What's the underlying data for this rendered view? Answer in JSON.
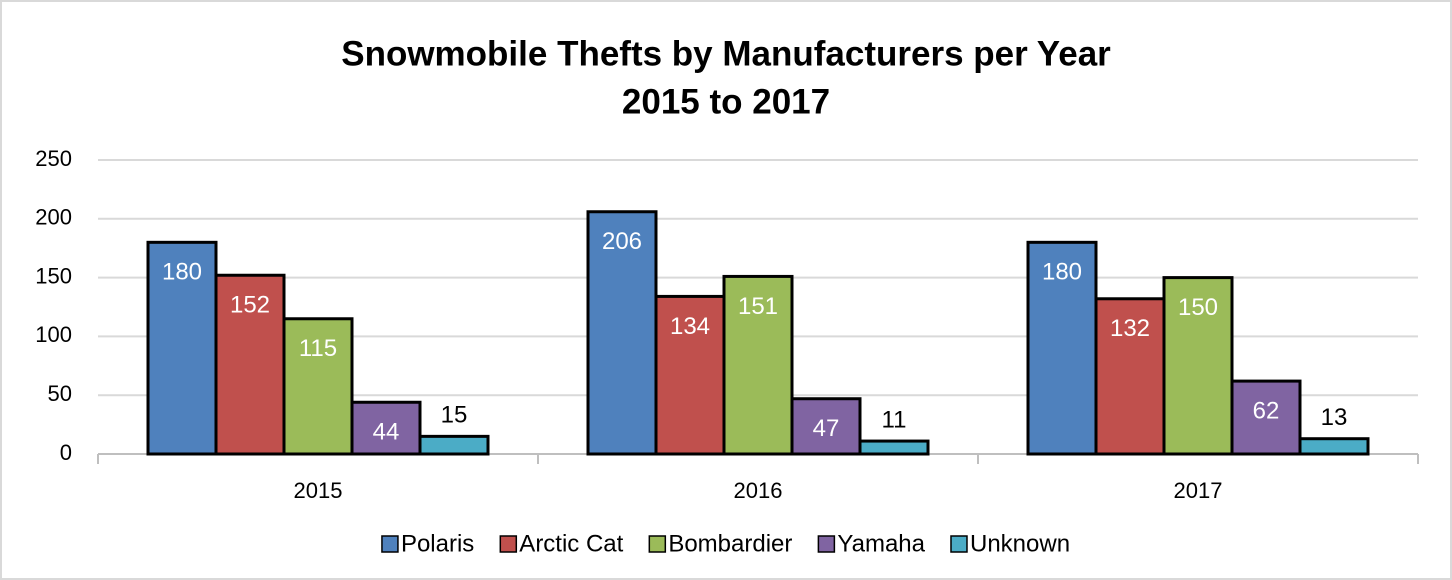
{
  "chart_data": {
    "type": "bar",
    "title": [
      "Snowmobile Thefts by Manufacturers per Year",
      "2015 to 2017"
    ],
    "categories": [
      "2015",
      "2016",
      "2017"
    ],
    "series": [
      {
        "name": "Polaris",
        "color": "#4f81bd",
        "values": [
          180,
          206,
          180
        ]
      },
      {
        "name": "Arctic Cat",
        "color": "#c0504d",
        "values": [
          152,
          134,
          132
        ]
      },
      {
        "name": "Bombardier",
        "color": "#9bbb59",
        "values": [
          115,
          151,
          150
        ]
      },
      {
        "name": "Yamaha",
        "color": "#8064a2",
        "values": [
          44,
          47,
          62
        ]
      },
      {
        "name": "Unknown",
        "color": "#4bacc6",
        "values": [
          15,
          11,
          13
        ]
      }
    ],
    "ylim": [
      0,
      250
    ],
    "yticks": [
      0,
      50,
      100,
      150,
      200,
      250
    ],
    "grid": true,
    "legend": "bottom"
  }
}
